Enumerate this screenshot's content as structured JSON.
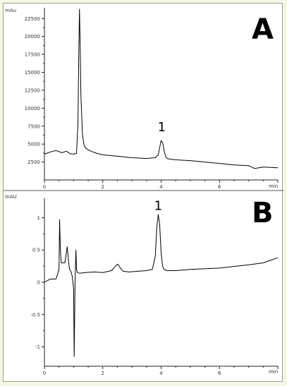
{
  "chart_data": [
    {
      "type": "line",
      "panel_label": "A",
      "y_unit": "mAu",
      "x_unit": "min",
      "xlim": [
        0,
        8
      ],
      "ylim": [
        0,
        24000
      ],
      "x_ticks": [
        0,
        2,
        4,
        6
      ],
      "y_ticks": [
        2500,
        5000,
        7500,
        10000,
        12500,
        15000,
        17500,
        20000,
        22500
      ],
      "grid": false,
      "annotation": {
        "text": "1",
        "x": 4.02,
        "y": 6800
      },
      "series": [
        {
          "x": [
            0.0,
            0.2,
            0.4,
            0.6,
            0.75,
            0.9,
            1.0,
            1.1,
            1.15,
            1.18,
            1.2,
            1.22,
            1.25,
            1.3,
            1.35,
            1.4,
            1.5,
            1.6,
            1.8,
            2.0,
            2.5,
            3.0,
            3.5,
            3.8,
            3.9,
            3.95,
            4.0,
            4.05,
            4.1,
            4.15,
            4.2,
            4.3,
            4.5,
            5.0,
            5.5,
            6.0,
            6.5,
            7.0,
            7.2,
            7.5,
            8.0
          ],
          "y": [
            3600,
            3900,
            4100,
            3800,
            4000,
            3650,
            3600,
            3700,
            8000,
            18000,
            23800,
            20000,
            12000,
            6500,
            5000,
            4500,
            4200,
            4000,
            3700,
            3500,
            3300,
            3100,
            3000,
            3100,
            3500,
            4500,
            5500,
            5200,
            4200,
            3300,
            3000,
            2900,
            2800,
            2700,
            2500,
            2300,
            2100,
            2000,
            1600,
            1800,
            1700
          ]
        }
      ]
    },
    {
      "type": "line",
      "panel_label": "B",
      "y_unit": "mAU",
      "x_unit": "min",
      "xlim": [
        0,
        8
      ],
      "ylim": [
        -1.3,
        1.3
      ],
      "x_ticks": [
        0,
        2,
        4,
        6
      ],
      "y_ticks": [
        -1,
        -0.5,
        0,
        0.5,
        1
      ],
      "y_tick_labels": [
        "-1",
        "-0.5",
        "0",
        "0.5",
        "1"
      ],
      "grid": false,
      "annotation": {
        "text": "1",
        "x": 3.9,
        "y": 1.12
      },
      "series": [
        {
          "x": [
            0.0,
            0.2,
            0.4,
            0.5,
            0.52,
            0.55,
            0.58,
            0.62,
            0.7,
            0.78,
            0.82,
            0.86,
            0.9,
            0.95,
            1.0,
            1.02,
            1.05,
            1.08,
            1.1,
            1.13,
            1.2,
            1.4,
            1.7,
            2.0,
            2.3,
            2.45,
            2.52,
            2.6,
            2.7,
            2.9,
            3.2,
            3.5,
            3.7,
            3.8,
            3.85,
            3.9,
            3.95,
            4.0,
            4.05,
            4.1,
            4.2,
            4.5,
            5.0,
            6.0,
            7.0,
            7.5,
            8.0
          ],
          "y": [
            0.0,
            0.05,
            0.05,
            0.2,
            0.97,
            0.45,
            0.3,
            0.3,
            0.3,
            0.55,
            0.35,
            0.2,
            0.18,
            0.1,
            -0.1,
            -1.15,
            0.0,
            0.5,
            0.2,
            0.15,
            0.14,
            0.15,
            0.16,
            0.15,
            0.18,
            0.26,
            0.28,
            0.22,
            0.17,
            0.16,
            0.17,
            0.18,
            0.2,
            0.4,
            0.85,
            1.05,
            0.9,
            0.45,
            0.25,
            0.2,
            0.18,
            0.18,
            0.2,
            0.22,
            0.27,
            0.3,
            0.38
          ]
        }
      ]
    }
  ]
}
